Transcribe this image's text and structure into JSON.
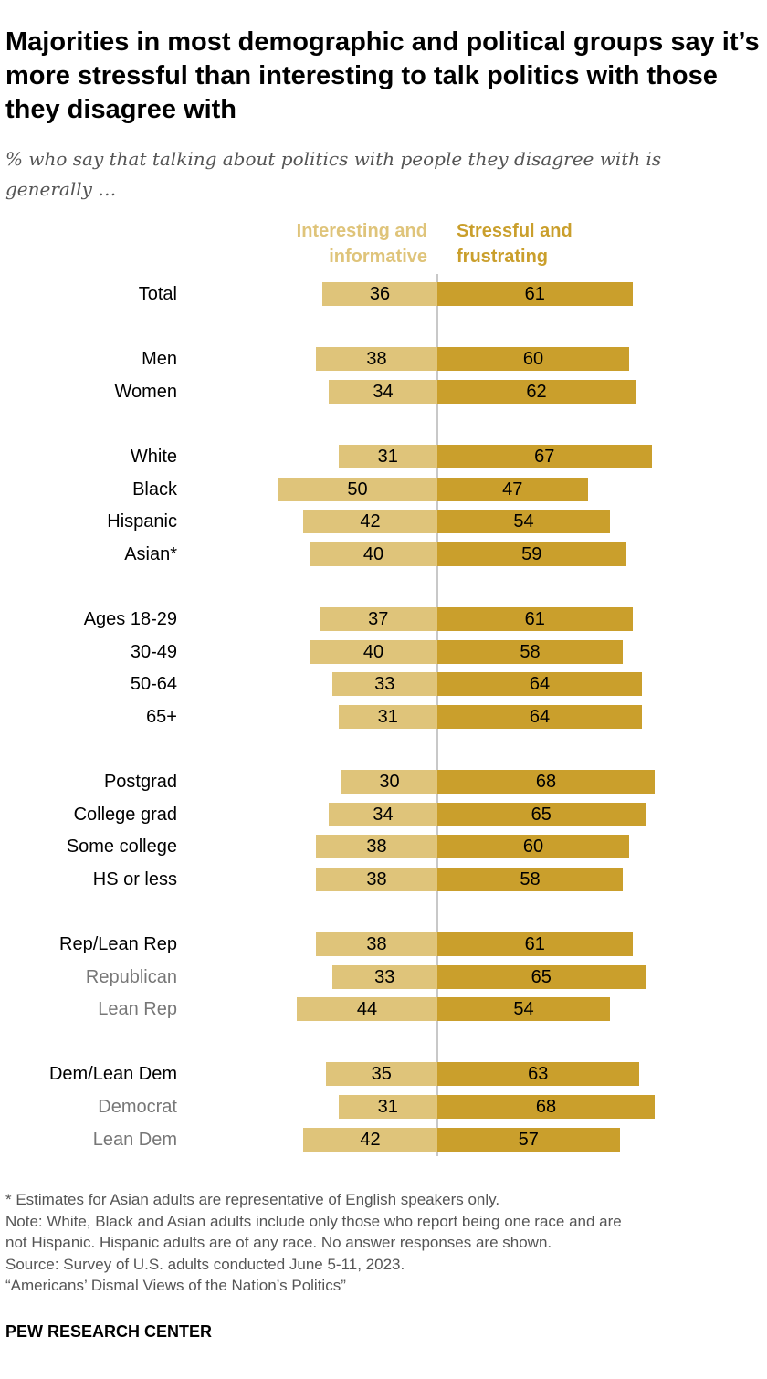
{
  "title": "Majorities in most demographic and political groups say it’s more stressful than interesting to talk politics with those they disagree with",
  "subtitle": "% who say that talking about politics with people they disagree with is generally …",
  "colors": {
    "interesting": "#DFC47A",
    "stressful": "#CA9F2C",
    "subgroup_label": "#777777",
    "label": "#000000"
  },
  "chart_data": {
    "type": "bar",
    "orientation": "horizontal-diverging",
    "series": [
      {
        "name": "Interesting and informative",
        "values": [
          36,
          38,
          34,
          31,
          50,
          42,
          40,
          37,
          40,
          33,
          31,
          30,
          34,
          38,
          38,
          38,
          33,
          44,
          35,
          31,
          42
        ]
      },
      {
        "name": "Stressful and frustrating",
        "values": [
          61,
          60,
          62,
          67,
          47,
          54,
          59,
          61,
          58,
          64,
          64,
          68,
          65,
          60,
          58,
          61,
          65,
          54,
          63,
          68,
          57
        ]
      }
    ],
    "categories": [
      "Total",
      "Men",
      "Women",
      "White",
      "Black",
      "Hispanic",
      "Asian*",
      "Ages 18-29",
      "30-49",
      "50-64",
      "65+",
      "Postgrad",
      "College grad",
      "Some college",
      "HS or less",
      "Rep/Lean Rep",
      "Republican",
      "Lean Rep",
      "Dem/Lean Dem",
      "Democrat",
      "Lean Dem"
    ],
    "groups": [
      [
        0
      ],
      [
        1,
        2
      ],
      [
        3,
        4,
        5,
        6
      ],
      [
        7,
        8,
        9,
        10
      ],
      [
        11,
        12,
        13,
        14
      ],
      [
        15,
        16,
        17
      ],
      [
        18,
        19,
        20
      ]
    ],
    "subgroups": [
      16,
      17,
      19,
      20
    ],
    "legend": {
      "left": [
        "Interesting and",
        "informative"
      ],
      "right": [
        "Stressful and",
        "frustrating"
      ]
    }
  },
  "notes": [
    "* Estimates for Asian adults are representative of English speakers only.",
    "Note: White, Black and Asian adults include only those who report being one race and are",
    "not Hispanic. Hispanic adults are of any race. No answer responses are shown.",
    "Source: Survey of U.S. adults conducted June 5-11, 2023.",
    "“Americans’ Dismal Views of the Nation’s Politics”"
  ],
  "brand": "PEW RESEARCH CENTER"
}
